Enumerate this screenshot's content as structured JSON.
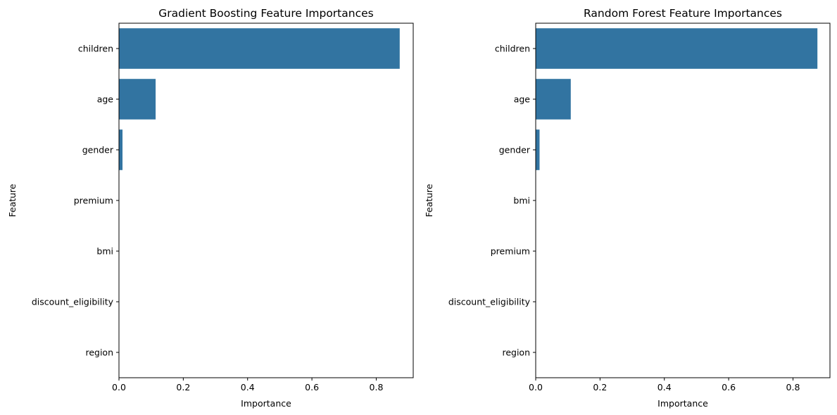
{
  "chart_data": [
    {
      "type": "bar",
      "orientation": "horizontal",
      "title": "Gradient Boosting Feature Importances",
      "xlabel": "Importance",
      "ylabel": "Feature",
      "xlim": [
        0,
        0.915
      ],
      "xticks": [
        0.0,
        0.2,
        0.4,
        0.6,
        0.8
      ],
      "xtick_labels": [
        "0.0",
        "0.2",
        "0.4",
        "0.6",
        "0.8"
      ],
      "categories": [
        "children",
        "age",
        "gender",
        "premium",
        "bmi",
        "discount_eligibility",
        "region"
      ],
      "values": [
        0.873,
        0.114,
        0.011,
        0.0,
        0.0,
        0.0,
        0.0
      ],
      "bar_color": "#3274a1",
      "grid": false
    },
    {
      "type": "bar",
      "orientation": "horizontal",
      "title": "Random Forest Feature Importances",
      "xlabel": "Importance",
      "ylabel": "Feature",
      "xlim": [
        0,
        0.915
      ],
      "xticks": [
        0.0,
        0.2,
        0.4,
        0.6,
        0.8
      ],
      "xtick_labels": [
        "0.0",
        "0.2",
        "0.4",
        "0.6",
        "0.8"
      ],
      "categories": [
        "children",
        "age",
        "gender",
        "bmi",
        "premium",
        "discount_eligibility",
        "region"
      ],
      "values": [
        0.876,
        0.109,
        0.012,
        0.0,
        0.0,
        0.0,
        0.0
      ],
      "bar_color": "#3274a1",
      "grid": false
    }
  ]
}
